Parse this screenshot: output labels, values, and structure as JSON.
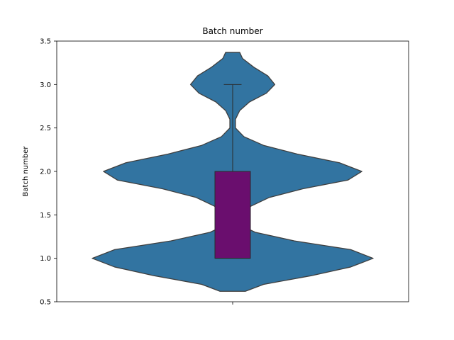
{
  "chart_data": {
    "type": "violin",
    "title": "Batch number",
    "xlabel": "",
    "ylabel": "Batch number",
    "ylim": [
      0.5,
      3.5
    ],
    "yticks": [
      "0.5",
      "1.0",
      "1.5",
      "2.0",
      "2.5",
      "3.0",
      "3.5"
    ],
    "grid": false,
    "legend": "none",
    "violin": {
      "color": "#3274a1",
      "edge_color": "#3f3f3f",
      "min": 0.62,
      "max": 3.37,
      "density": [
        [
          0.62,
          0.09
        ],
        [
          0.7,
          0.22
        ],
        [
          0.8,
          0.56
        ],
        [
          0.9,
          0.84
        ],
        [
          1.0,
          1.0
        ],
        [
          1.1,
          0.84
        ],
        [
          1.2,
          0.44
        ],
        [
          1.3,
          0.16
        ],
        [
          1.4,
          0.03
        ],
        [
          1.5,
          0.05
        ],
        [
          1.6,
          0.13
        ],
        [
          1.7,
          0.26
        ],
        [
          1.8,
          0.5
        ],
        [
          1.9,
          0.82
        ],
        [
          2.0,
          0.92
        ],
        [
          2.1,
          0.76
        ],
        [
          2.2,
          0.46
        ],
        [
          2.3,
          0.22
        ],
        [
          2.4,
          0.08
        ],
        [
          2.5,
          0.02
        ],
        [
          2.6,
          0.02
        ],
        [
          2.7,
          0.05
        ],
        [
          2.8,
          0.12
        ],
        [
          2.9,
          0.24
        ],
        [
          3.0,
          0.3
        ],
        [
          3.1,
          0.25
        ],
        [
          3.2,
          0.15
        ],
        [
          3.3,
          0.07
        ],
        [
          3.37,
          0.05
        ]
      ]
    },
    "box": {
      "q1": 1.0,
      "median": 1.0,
      "q3": 2.0,
      "whisker_low": 1.0,
      "whisker_high": 3.0,
      "color": "#6a0e6e",
      "edge_color": "#2b2b2b"
    }
  }
}
